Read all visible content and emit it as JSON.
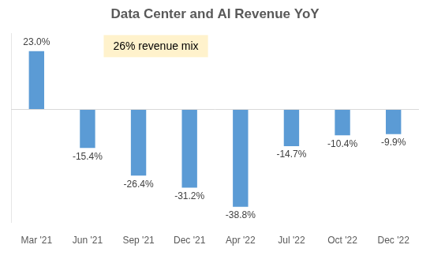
{
  "chart_data": {
    "type": "bar",
    "title": "Data Center and AI Revenue YoY",
    "annotation": "26% revenue mix",
    "categories": [
      "Mar '21",
      "Jun '21",
      "Sep '21",
      "Dec '21",
      "Apr '22",
      "Jul '22",
      "Oct '22",
      "Dec '22"
    ],
    "values": [
      23.0,
      -15.4,
      -26.4,
      -31.2,
      -38.8,
      -14.7,
      -10.4,
      -9.9
    ],
    "value_labels": [
      "23.0%",
      "-15.4%",
      "-26.4%",
      "-31.2%",
      "-38.8%",
      "-14.7%",
      "-10.4%",
      "-9.9%"
    ],
    "color": "#5b9bd5",
    "ylim": [
      -45,
      30
    ],
    "grid": false,
    "data_labels": true,
    "tick_labels": "x"
  }
}
